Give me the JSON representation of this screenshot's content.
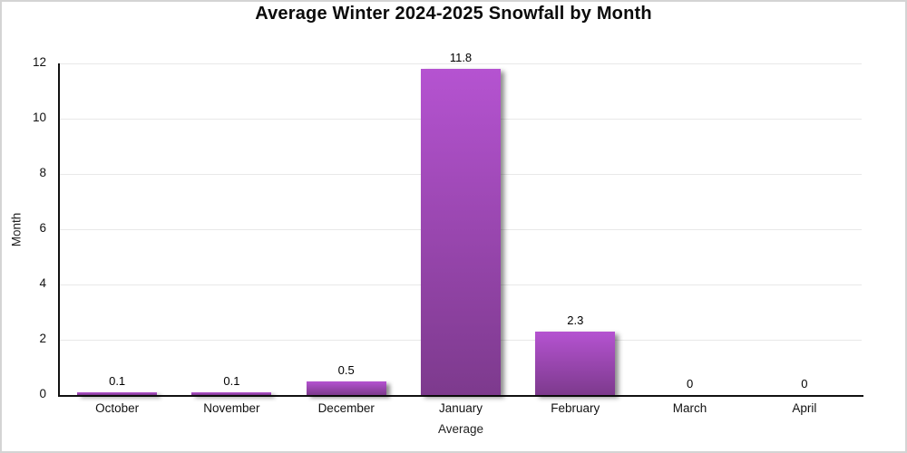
{
  "chart_data": {
    "type": "bar",
    "title": "Average Winter 2024-2025 Snowfall by Month",
    "categories": [
      "October",
      "November",
      "December",
      "January",
      "February",
      "March",
      "April"
    ],
    "values": [
      0.1,
      0.1,
      0.5,
      11.8,
      2.3,
      0,
      0
    ],
    "value_labels": [
      "0.1",
      "0.1",
      "0.5",
      "11.8",
      "2.3",
      "0",
      "0"
    ],
    "xlabel": "Average",
    "ylabel": "Month",
    "ylim": [
      0,
      12
    ],
    "yticks": [
      0,
      2,
      4,
      6,
      8,
      10,
      12
    ],
    "grid": true,
    "legend_position": "none",
    "colors": {
      "bar_gradient_top": "#b553d1",
      "bar_gradient_bottom": "#7d3a8d",
      "axis_line": "#111111",
      "gridline": "#e8e8e8",
      "label_text": "#000000",
      "axis_title_text": "#222222",
      "frame_border": "#d4d4d4",
      "background": "#ffffff"
    }
  }
}
